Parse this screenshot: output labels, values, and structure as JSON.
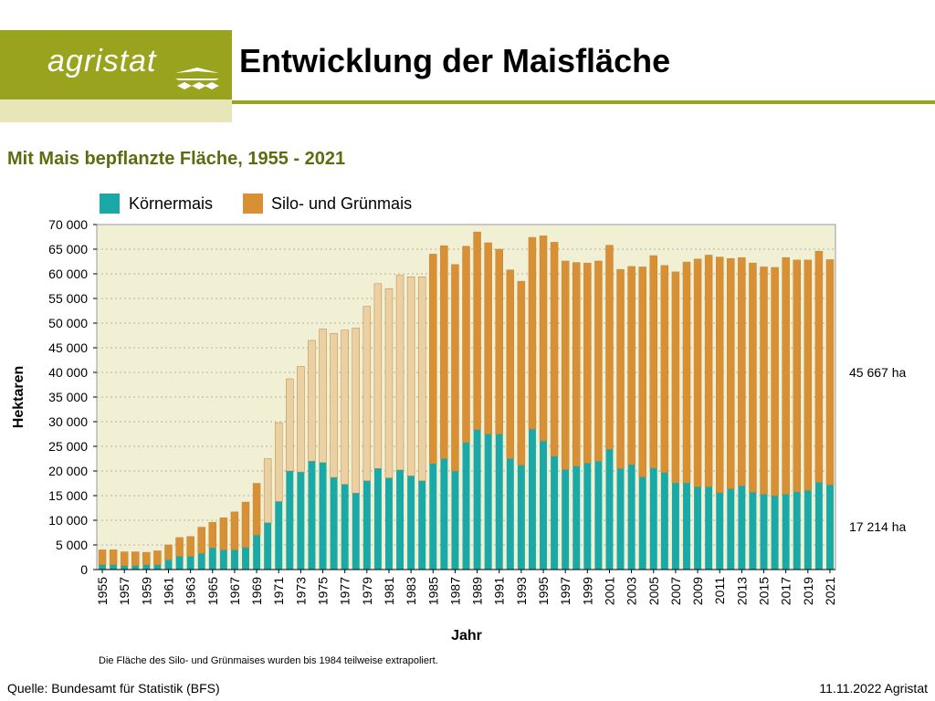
{
  "header": {
    "logo_text": "agristat",
    "title": "Entwicklung der Maisfläche"
  },
  "colors": {
    "brand": "#9aa31d",
    "brand_pale": "#e6e6b8",
    "koernermais": "#1aa9a6",
    "silomais": "#d99034",
    "silomais_extrapolated": "#ebd0a4",
    "plot_background": "#f2f0d4"
  },
  "chart_data": {
    "type": "bar",
    "stacked": true,
    "title": "Mit Mais bepflanzte Fläche, 1955 - 2021",
    "xlabel": "Jahr",
    "ylabel": "Hektaren",
    "ylim": [
      0,
      70000
    ],
    "y_ticks": [
      "0",
      "5 000",
      "10 000",
      "15 000",
      "20 000",
      "25 000",
      "30 000",
      "35 000",
      "40 000",
      "45 000",
      "50 000",
      "55 000",
      "60 000",
      "65 000",
      "70 000"
    ],
    "grid": true,
    "legend_position": "top-left",
    "categories": [
      1955,
      1956,
      1957,
      1958,
      1959,
      1960,
      1961,
      1962,
      1963,
      1964,
      1965,
      1966,
      1967,
      1968,
      1969,
      1970,
      1971,
      1972,
      1973,
      1974,
      1975,
      1976,
      1977,
      1978,
      1979,
      1980,
      1981,
      1982,
      1983,
      1984,
      1985,
      1986,
      1987,
      1988,
      1989,
      1990,
      1991,
      1992,
      1993,
      1994,
      1995,
      1996,
      1997,
      1998,
      1999,
      2000,
      2001,
      2002,
      2003,
      2004,
      2005,
      2006,
      2007,
      2008,
      2009,
      2010,
      2011,
      2012,
      2013,
      2014,
      2015,
      2016,
      2017,
      2018,
      2019,
      2020,
      2021
    ],
    "series": [
      {
        "name": "Körnermais",
        "values": [
          1000,
          1000,
          800,
          800,
          1000,
          1000,
          2000,
          2700,
          2700,
          3300,
          4400,
          4000,
          4000,
          4500,
          7000,
          9500,
          13800,
          20000,
          19800,
          22000,
          21700,
          18700,
          17300,
          15500,
          18000,
          20500,
          18600,
          20200,
          19000,
          18000,
          21500,
          22500,
          20000,
          25800,
          28400,
          27500,
          27500,
          22500,
          21200,
          28500,
          26100,
          23000,
          20300,
          21000,
          21600,
          22000,
          24400,
          20500,
          21300,
          18800,
          20600,
          19700,
          17600,
          17600,
          16800,
          16800,
          15600,
          16400,
          17000,
          15700,
          15300,
          15000,
          15300,
          15800,
          16100,
          17700,
          17214
        ]
      },
      {
        "name": "Silo- und Grünmais",
        "values": [
          3000,
          3000,
          2800,
          2800,
          2500,
          2800,
          3000,
          3800,
          4000,
          5300,
          5200,
          6500,
          7700,
          9200,
          10500,
          13000,
          16000,
          18700,
          21400,
          24500,
          27100,
          29200,
          31300,
          33500,
          35400,
          37500,
          38400,
          39500,
          40400,
          41400,
          42500,
          43200,
          41900,
          39800,
          40100,
          38800,
          37500,
          38300,
          37300,
          38900,
          41600,
          43400,
          42300,
          41300,
          40600,
          40600,
          41400,
          40400,
          40200,
          42600,
          43100,
          42000,
          42800,
          44800,
          46200,
          47000,
          47800,
          46700,
          46300,
          46500,
          46100,
          46300,
          48000,
          47000,
          46700,
          46900,
          45667
        ]
      }
    ],
    "extrapolated_until": 1984,
    "annotations": [
      {
        "text": "45 667 ha",
        "series": "Silo- und Grünmais",
        "year": 2021
      },
      {
        "text": "17 214 ha",
        "series": "Körnermais",
        "year": 2021
      }
    ],
    "footnote": "Die Fläche des Silo- und Grünmaises wurden bis 1984 teilweise extrapoliert."
  },
  "footer": {
    "source": "Quelle: Bundesamt für Statistik (BFS)",
    "date_author": "11.11.2022 Agristat"
  }
}
